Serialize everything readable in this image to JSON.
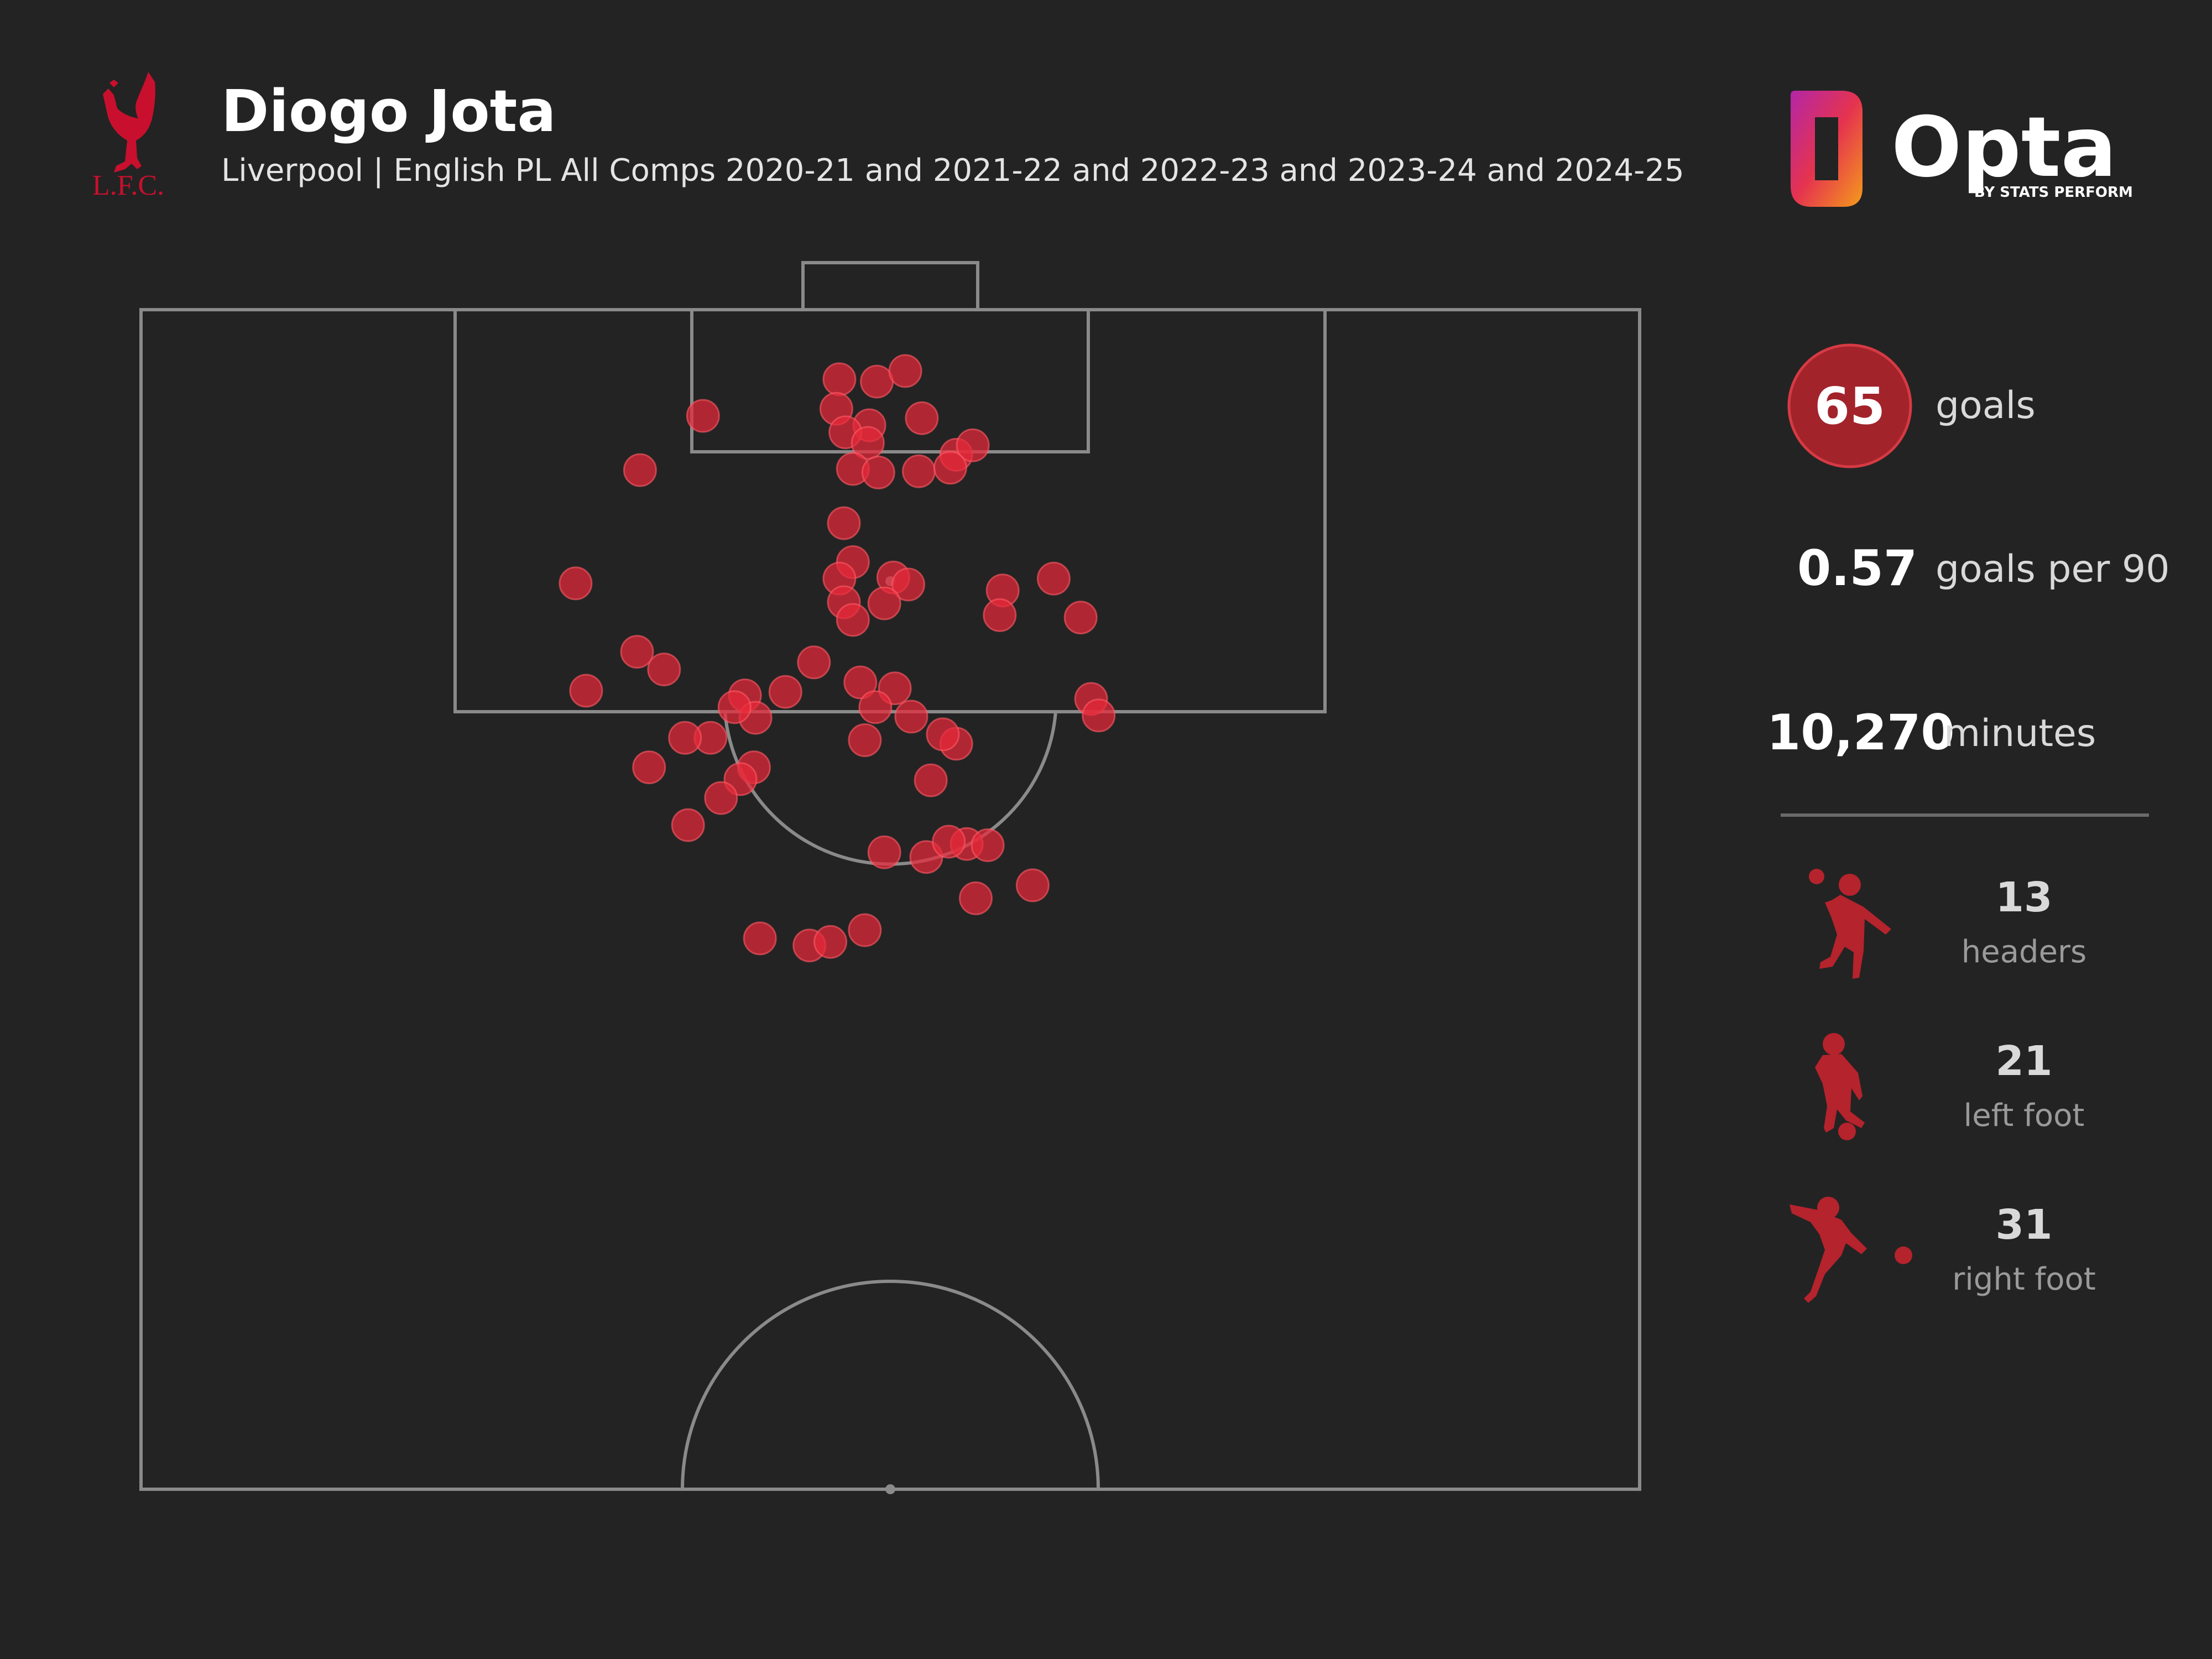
{
  "header": {
    "club_crest_text": "L.F.C.",
    "player_name": "Diogo Jota",
    "subtitle": "Liverpool | English PL All Comps 2020-21 and 2021-22 and 2022-23 and 2023-24 and 2024-25"
  },
  "brand": {
    "logo_text": "Opta",
    "logo_tagline": "BY STATS PERFORM"
  },
  "stats": {
    "goals_value": "65",
    "goals_label": "goals",
    "gp90_value": "0.57",
    "gp90_label": "goals per 90",
    "minutes_value": "10,270",
    "minutes_label": "minutes",
    "breakdown": [
      {
        "value": "13",
        "label": "headers",
        "icon": "header-player-icon"
      },
      {
        "value": "21",
        "label": "left foot",
        "icon": "left-foot-player-icon"
      },
      {
        "value": "31",
        "label": "right foot",
        "icon": "right-foot-player-icon"
      }
    ]
  },
  "colors": {
    "background": "#232323",
    "pitch_lines": "#8a8a8a",
    "goal_dot": "#e8293a",
    "goals_badge": "#a3232b",
    "liverpool_red": "#c8102e",
    "player_icon": "#b5232c",
    "text_primary": "#ffffff",
    "text_secondary": "#d9d9d9",
    "text_muted": "#9a9a9a"
  },
  "chart_data": {
    "type": "scatter",
    "title": "Diogo Jota",
    "subtitle": "Liverpool | English PL All Comps 2020-21 and 2021-22 and 2022-23 and 2023-24 and 2024-25",
    "description_units": "shot location on half pitch, x = across pitch width (0-100), y = distance from goal line (0-100 half pitch)",
    "points": [
      [
        46.6,
        5.9
      ],
      [
        49.1,
        6.1
      ],
      [
        51.0,
        5.2
      ],
      [
        46.4,
        8.4
      ],
      [
        48.6,
        9.8
      ],
      [
        52.1,
        9.2
      ],
      [
        47.0,
        10.4
      ],
      [
        48.5,
        11.3
      ],
      [
        47.5,
        13.5
      ],
      [
        49.2,
        13.8
      ],
      [
        51.9,
        13.7
      ],
      [
        54.4,
        12.3
      ],
      [
        55.5,
        11.5
      ],
      [
        54.0,
        13.4
      ],
      [
        37.5,
        9.0
      ],
      [
        33.3,
        13.6
      ],
      [
        29.0,
        23.2
      ],
      [
        29.7,
        32.3
      ],
      [
        33.1,
        29.0
      ],
      [
        34.9,
        30.5
      ],
      [
        46.9,
        18.1
      ],
      [
        47.5,
        21.4
      ],
      [
        46.6,
        22.8
      ],
      [
        46.9,
        24.8
      ],
      [
        47.5,
        26.3
      ],
      [
        50.2,
        22.7
      ],
      [
        51.2,
        23.3
      ],
      [
        49.6,
        24.9
      ],
      [
        57.5,
        23.8
      ],
      [
        57.3,
        25.9
      ],
      [
        60.9,
        22.8
      ],
      [
        62.7,
        26.1
      ],
      [
        44.9,
        29.9
      ],
      [
        43.0,
        32.4
      ],
      [
        40.3,
        32.7
      ],
      [
        41.0,
        34.6
      ],
      [
        39.6,
        33.7
      ],
      [
        38.0,
        36.3
      ],
      [
        40.9,
        38.8
      ],
      [
        40.0,
        39.8
      ],
      [
        38.7,
        41.4
      ],
      [
        36.5,
        43.7
      ],
      [
        48.0,
        31.6
      ],
      [
        50.3,
        32.1
      ],
      [
        49.0,
        33.7
      ],
      [
        48.3,
        36.5
      ],
      [
        52.7,
        39.9
      ],
      [
        54.4,
        36.8
      ],
      [
        55.1,
        45.3
      ],
      [
        49.6,
        46.0
      ],
      [
        52.4,
        46.4
      ],
      [
        53.9,
        45.1
      ],
      [
        56.5,
        45.4
      ],
      [
        55.7,
        49.9
      ],
      [
        59.5,
        48.8
      ],
      [
        63.4,
        33.0
      ],
      [
        63.9,
        34.4
      ],
      [
        41.3,
        53.3
      ],
      [
        44.6,
        53.9
      ],
      [
        46.0,
        53.6
      ],
      [
        48.3,
        52.6
      ],
      [
        33.9,
        38.8
      ],
      [
        36.3,
        36.3
      ],
      [
        53.5,
        36.0
      ],
      [
        51.4,
        34.5
      ]
    ],
    "point_shape": "circle",
    "pitch_view": "attacking half, goal at top"
  }
}
